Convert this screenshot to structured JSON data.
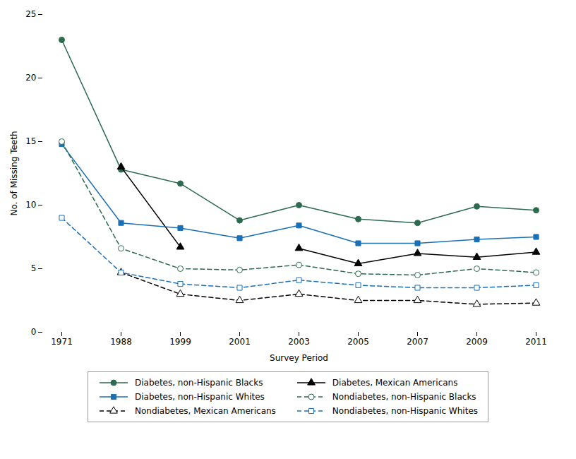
{
  "chart_data": {
    "type": "line",
    "xlabel": "Survey Period",
    "ylabel": "No. of Missing Teeth",
    "categories": [
      "1971",
      "1988",
      "1999",
      "2001",
      "2003",
      "2005",
      "2007",
      "2009",
      "2011"
    ],
    "series": [
      {
        "name": "Diabetes, non-Hispanic Blacks",
        "color": "#2d6a4f",
        "marker": "circle",
        "line_style": "solid",
        "values": [
          23.0,
          12.8,
          11.7,
          8.8,
          10.0,
          8.9,
          8.6,
          9.9,
          9.6
        ]
      },
      {
        "name": "Diabetes, Mexican Americans",
        "color": "#000000",
        "marker": "triangle",
        "line_style": "solid",
        "values": [
          null,
          13.0,
          6.7,
          null,
          6.6,
          5.4,
          6.2,
          5.9,
          6.3
        ]
      },
      {
        "name": "Diabetes, non-Hispanic Whites",
        "color": "#1a6fb5",
        "marker": "square",
        "line_style": "solid",
        "values": [
          14.8,
          8.6,
          8.2,
          7.4,
          8.4,
          7.0,
          7.0,
          7.3,
          7.5
        ]
      },
      {
        "name": "Nondiabetes, non-Hispanic Blacks",
        "color": "#2d6a4f",
        "marker": "circle-open",
        "line_style": "dashed",
        "values": [
          15.0,
          6.6,
          5.0,
          4.9,
          5.3,
          4.6,
          4.5,
          5.0,
          4.7
        ]
      },
      {
        "name": "Nondiabetes, Mexican Americans",
        "color": "#000000",
        "marker": "triangle-open",
        "line_style": "dashed",
        "values": [
          null,
          4.7,
          3.0,
          2.5,
          3.0,
          2.5,
          2.5,
          2.2,
          2.3
        ]
      },
      {
        "name": "Nondiabetes, non-Hispanic Whites",
        "color": "#1a6fb5",
        "marker": "square-open",
        "line_style": "dashed",
        "values": [
          9.0,
          4.7,
          3.8,
          3.5,
          4.1,
          3.7,
          3.5,
          3.5,
          3.7
        ]
      }
    ],
    "ylim": [
      0,
      25
    ],
    "yticks": [
      0,
      5,
      10,
      15,
      20,
      25
    ],
    "grid": false,
    "legend": "bottom"
  }
}
